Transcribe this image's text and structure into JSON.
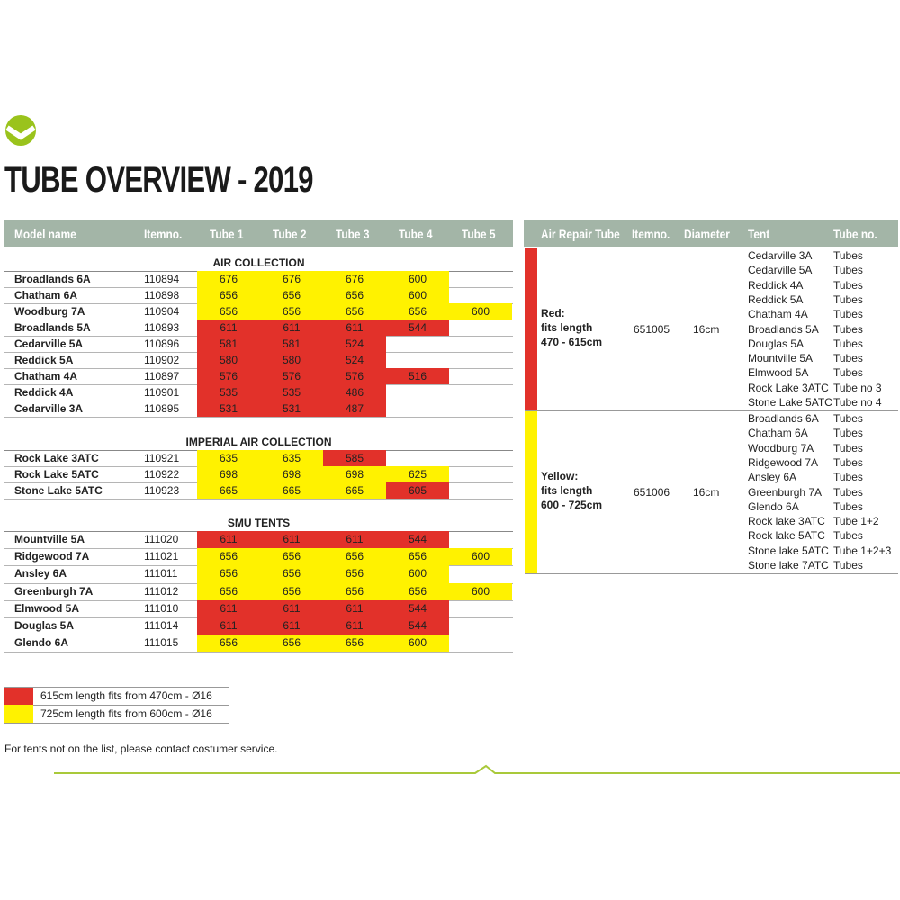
{
  "header": {
    "title": "TUBE OVERVIEW - 2019"
  },
  "left_table": {
    "columns": [
      "Model name",
      "Itemno.",
      "Tube 1",
      "Tube 2",
      "Tube 3",
      "Tube 4",
      "Tube 5"
    ],
    "sections": [
      {
        "title": "AIR COLLECTION",
        "rows": [
          {
            "model": "Broadlands 6A",
            "item": "110894",
            "tubes": [
              "676",
              "676",
              "676",
              "600"
            ],
            "colors": [
              "#fff200",
              "#fff200",
              "#fff200",
              "#fff200"
            ]
          },
          {
            "model": "Chatham 6A",
            "item": "110898",
            "tubes": [
              "656",
              "656",
              "656",
              "600"
            ],
            "colors": [
              "#fff200",
              "#fff200",
              "#fff200",
              "#fff200"
            ]
          },
          {
            "model": "Woodburg 7A",
            "item": "110904",
            "tubes": [
              "656",
              "656",
              "656",
              "656",
              "600"
            ],
            "colors": [
              "#fff200",
              "#fff200",
              "#fff200",
              "#fff200",
              "#fff200"
            ]
          },
          {
            "model": "Broadlands 5A",
            "item": "110893",
            "tubes": [
              "611",
              "611",
              "611",
              "544"
            ],
            "colors": [
              "#e2312a",
              "#e2312a",
              "#e2312a",
              "#e2312a"
            ]
          },
          {
            "model": "Cedarville 5A",
            "item": "110896",
            "tubes": [
              "581",
              "581",
              "524"
            ],
            "colors": [
              "#e2312a",
              "#e2312a",
              "#e2312a"
            ]
          },
          {
            "model": "Reddick 5A",
            "item": "110902",
            "tubes": [
              "580",
              "580",
              "524"
            ],
            "colors": [
              "#e2312a",
              "#e2312a",
              "#e2312a"
            ]
          },
          {
            "model": "Chatham 4A",
            "item": "110897",
            "tubes": [
              "576",
              "576",
              "576",
              "516"
            ],
            "colors": [
              "#e2312a",
              "#e2312a",
              "#e2312a",
              "#e2312a"
            ]
          },
          {
            "model": "Reddick 4A",
            "item": "110901",
            "tubes": [
              "535",
              "535",
              "486"
            ],
            "colors": [
              "#e2312a",
              "#e2312a",
              "#e2312a"
            ]
          },
          {
            "model": "Cedarville 3A",
            "item": "110895",
            "tubes": [
              "531",
              "531",
              "487"
            ],
            "colors": [
              "#e2312a",
              "#e2312a",
              "#e2312a"
            ]
          }
        ]
      },
      {
        "title": "IMPERIAL AIR COLLECTION",
        "rows": [
          {
            "model": "Rock Lake 3ATC",
            "item": "110921",
            "tubes": [
              "635",
              "635",
              "585"
            ],
            "colors": [
              "#fff200",
              "#fff200",
              "#e2312a"
            ]
          },
          {
            "model": "Rock Lake 5ATC",
            "item": "110922",
            "tubes": [
              "698",
              "698",
              "698",
              "625"
            ],
            "colors": [
              "#fff200",
              "#fff200",
              "#fff200",
              "#fff200"
            ]
          },
          {
            "model": "Stone Lake 5ATC",
            "item": "110923",
            "tubes": [
              "665",
              "665",
              "665",
              "605"
            ],
            "colors": [
              "#fff200",
              "#fff200",
              "#fff200",
              "#e2312a"
            ]
          }
        ]
      },
      {
        "title": "SMU TENTS",
        "rows": [
          {
            "model": "Mountville 5A",
            "item": "111020",
            "tubes": [
              "611",
              "611",
              "611",
              "544"
            ],
            "colors": [
              "#e2312a",
              "#e2312a",
              "#e2312a",
              "#e2312a"
            ]
          },
          {
            "model": "Ridgewood 7A",
            "item": "111021",
            "tubes": [
              "656",
              "656",
              "656",
              "656",
              "600"
            ],
            "colors": [
              "#fff200",
              "#fff200",
              "#fff200",
              "#fff200",
              "#fff200"
            ]
          },
          {
            "model": "Ansley 6A",
            "item": "111011",
            "tubes": [
              "656",
              "656",
              "656",
              "600"
            ],
            "colors": [
              "#fff200",
              "#fff200",
              "#fff200",
              "#fff200"
            ]
          },
          {
            "model": "Greenburgh 7A",
            "item": "111012",
            "tubes": [
              "656",
              "656",
              "656",
              "656",
              "600"
            ],
            "colors": [
              "#fff200",
              "#fff200",
              "#fff200",
              "#fff200",
              "#fff200"
            ]
          },
          {
            "model": "Elmwood 5A",
            "item": "111010",
            "tubes": [
              "611",
              "611",
              "611",
              "544"
            ],
            "colors": [
              "#e2312a",
              "#e2312a",
              "#e2312a",
              "#e2312a"
            ]
          },
          {
            "model": "Douglas 5A",
            "item": "111014",
            "tubes": [
              "611",
              "611",
              "611",
              "544"
            ],
            "colors": [
              "#e2312a",
              "#e2312a",
              "#e2312a",
              "#e2312a"
            ]
          },
          {
            "model": "Glendo 6A",
            "item": "111015",
            "tubes": [
              "656",
              "656",
              "656",
              "600"
            ],
            "colors": [
              "#fff200",
              "#fff200",
              "#fff200",
              "#fff200"
            ]
          }
        ]
      }
    ]
  },
  "right_table": {
    "columns": [
      "Air Repair Tube",
      "Itemno.",
      "Diameter",
      "Tent",
      "Tube no."
    ],
    "groups": [
      {
        "label_lines": [
          "Red:",
          "fits length",
          "470 - 615cm"
        ],
        "item": "651005",
        "diameter": "16cm",
        "color": "#e2312a",
        "tents": [
          {
            "name": "Cedarville 3A",
            "tube": "Tubes"
          },
          {
            "name": "Cedarville 5A",
            "tube": "Tubes"
          },
          {
            "name": "Reddick 4A",
            "tube": "Tubes"
          },
          {
            "name": "Reddick 5A",
            "tube": "Tubes"
          },
          {
            "name": "Chatham 4A",
            "tube": "Tubes"
          },
          {
            "name": "Broadlands 5A",
            "tube": "Tubes"
          },
          {
            "name": "Douglas 5A",
            "tube": "Tubes"
          },
          {
            "name": "Mountville 5A",
            "tube": "Tubes"
          },
          {
            "name": "Elmwood 5A",
            "tube": "Tubes"
          },
          {
            "name": "Rock Lake 3ATC",
            "tube": "Tube no 3"
          },
          {
            "name": "Stone Lake 5ATC",
            "tube": "Tube no 4"
          }
        ]
      },
      {
        "label_lines": [
          "Yellow:",
          "fits length",
          "600 - 725cm"
        ],
        "item": "651006",
        "diameter": "16cm",
        "color": "#fff200",
        "tents": [
          {
            "name": "Broadlands 6A",
            "tube": "Tubes"
          },
          {
            "name": "Chatham 6A",
            "tube": "Tubes"
          },
          {
            "name": "Woodburg 7A",
            "tube": "Tubes"
          },
          {
            "name": "Ridgewood 7A",
            "tube": "Tubes"
          },
          {
            "name": "Ansley 6A",
            "tube": "Tubes"
          },
          {
            "name": "Greenburgh 7A",
            "tube": "Tubes"
          },
          {
            "name": "Glendo 6A",
            "tube": "Tubes"
          },
          {
            "name": "Rock lake 3ATC",
            "tube": "Tube 1+2"
          },
          {
            "name": "Rock lake 5ATC",
            "tube": "Tubes"
          },
          {
            "name": "Stone lake 5ATC",
            "tube": "Tube 1+2+3"
          },
          {
            "name": "Stone lake 7ATC",
            "tube": "Tubes"
          }
        ]
      }
    ]
  },
  "legend": [
    {
      "color": "#e2312a",
      "text": "615cm length fits from 470cm - Ø16"
    },
    {
      "color": "#fff200",
      "text": "725cm length fits from 600cm - Ø16"
    }
  ],
  "footnote": "For tents not on the list, please contact costumer service."
}
